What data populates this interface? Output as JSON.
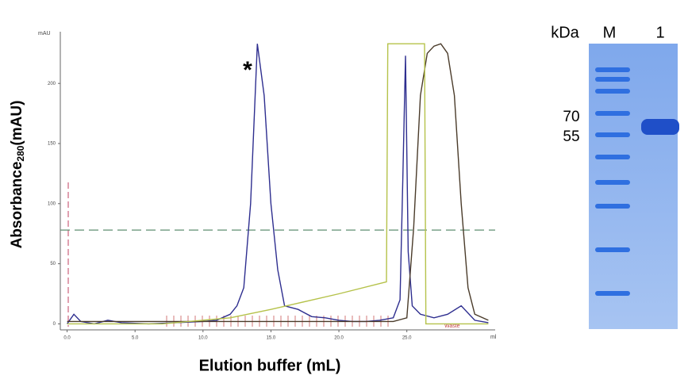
{
  "chart_data": {
    "type": "line",
    "x_label": "Elution buffer (mL)",
    "y_label": [
      "Absorbance",
      "280",
      "(mAU)"
    ],
    "x_unit": "ml",
    "y_unit": "mAU",
    "annotations": [
      "*",
      "Waste"
    ],
    "xlim": [
      -0.5,
      31.5
    ],
    "ylim": [
      -5,
      243
    ],
    "xticks": [
      {
        "value": 0,
        "label": "0.0"
      },
      {
        "value": 5,
        "label": "5.0"
      },
      {
        "value": 10,
        "label": "10.0"
      },
      {
        "value": 15,
        "label": "15.0"
      },
      {
        "value": 20,
        "label": "20.0"
      },
      {
        "value": 25,
        "label": "25.0"
      }
    ],
    "yticks": [
      0,
      50,
      100,
      150,
      200
    ],
    "reference_line": 78,
    "reference_color": "#5f8f70",
    "series": [
      {
        "color": "#2e2e8f",
        "x": [
          0,
          0.5,
          1,
          2,
          3,
          4,
          6,
          8,
          10,
          11,
          12,
          12.5,
          13,
          13.5,
          14,
          14.5,
          15,
          15.5,
          16,
          17,
          18,
          19,
          20,
          21,
          22,
          23,
          24,
          24.5,
          24.7,
          24.9,
          25.1,
          25.4,
          26,
          27,
          28,
          29,
          30,
          31
        ],
        "values": [
          0,
          8,
          2,
          0,
          3,
          1,
          0,
          1,
          2,
          3,
          8,
          15,
          30,
          100,
          233,
          190,
          100,
          45,
          15,
          12,
          6,
          5,
          3,
          2,
          2,
          3,
          5,
          20,
          120,
          223,
          60,
          15,
          8,
          5,
          8,
          15,
          3,
          1
        ]
      },
      {
        "color": "#4a3b2a",
        "x": [
          0,
          5,
          10,
          15,
          20,
          24,
          25,
          25.5,
          26,
          26.5,
          27,
          27.5,
          28,
          28.5,
          29,
          29.5,
          30,
          31
        ],
        "values": [
          2,
          2,
          2,
          2,
          2,
          2,
          5,
          80,
          190,
          225,
          231,
          233,
          225,
          190,
          100,
          30,
          8,
          3
        ]
      },
      {
        "color": "#b5c24a",
        "x": [
          0,
          7,
          12,
          15,
          20,
          23.5,
          23.6,
          26.3,
          26.4,
          31
        ],
        "values": [
          0,
          0,
          5,
          12,
          25,
          35,
          233,
          233,
          0,
          0
        ]
      }
    ]
  },
  "gel": {
    "labels": [
      "kDa",
      "M",
      "1"
    ],
    "markers": [
      "70",
      "55"
    ]
  }
}
